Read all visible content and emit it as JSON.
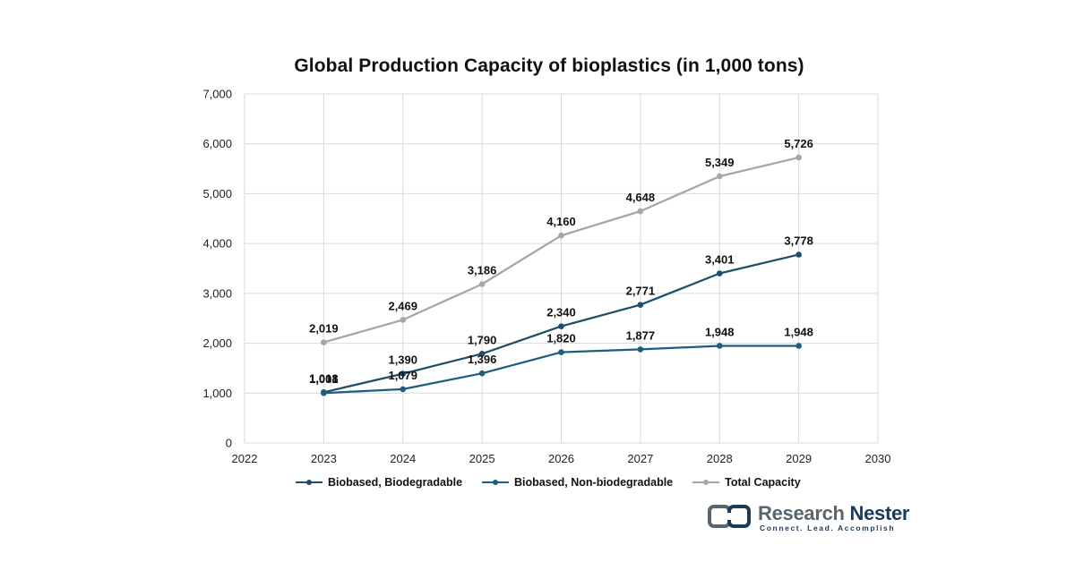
{
  "chart_data": {
    "type": "scatter",
    "title": "Global Production Capacity of bioplastics (in 1,000 tons)",
    "xlabel": "",
    "ylabel": "",
    "xlim": [
      2022,
      2030
    ],
    "ylim": [
      0,
      7000
    ],
    "x_ticks": [
      "2022",
      "2023",
      "2024",
      "2025",
      "2026",
      "2027",
      "2028",
      "2029",
      "2030"
    ],
    "y_ticks": [
      "0",
      "1,000",
      "2,000",
      "3,000",
      "4,000",
      "5,000",
      "6,000",
      "7,000"
    ],
    "grid": "horizontal and vertical",
    "legend_position": "bottom",
    "series": [
      {
        "name": "Biobased, Biodegradable",
        "color": "#1f4e6b",
        "x": [
          2023,
          2024,
          2025,
          2026,
          2027,
          2028,
          2029
        ],
        "values": [
          1018,
          1390,
          1790,
          2340,
          2771,
          3401,
          3778
        ],
        "labels": [
          "1,018",
          "1,390",
          "1,790",
          "2,340",
          "2,771",
          "3,401",
          "3,778"
        ]
      },
      {
        "name": "Biobased, Non-biodegradable",
        "color": "#1b5e7e",
        "x": [
          2023,
          2024,
          2025,
          2026,
          2027,
          2028,
          2029
        ],
        "values": [
          1001,
          1079,
          1396,
          1820,
          1877,
          1948,
          1948
        ],
        "labels": [
          "1,001",
          "1,079",
          "1,396",
          "1,820",
          "1,877",
          "1,948",
          "1,948"
        ]
      },
      {
        "name": "Total Capacity",
        "color": "#a6a6a6",
        "x": [
          2023,
          2024,
          2025,
          2026,
          2027,
          2028,
          2029
        ],
        "values": [
          2019,
          2469,
          3186,
          4160,
          4648,
          5349,
          5726
        ],
        "labels": [
          "2,019",
          "2,469",
          "3,186",
          "4,160",
          "4,648",
          "5,349",
          "5,726"
        ]
      }
    ]
  },
  "brand": {
    "name_part1": "Research ",
    "name_part2": "Nester",
    "tagline": "Connect. Lead. Accomplish"
  }
}
